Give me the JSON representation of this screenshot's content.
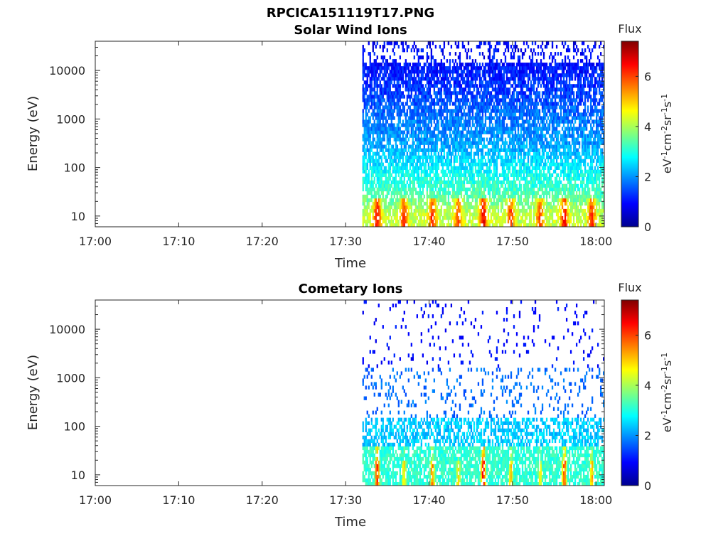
{
  "figure": {
    "filename_title": "RPCICA151119T17.PNG"
  },
  "colors": {
    "colormap": "jet",
    "axis": "#262626",
    "background": "#ffffff"
  },
  "chart_data": [
    {
      "type": "heatmap",
      "title": "Solar Wind Ions",
      "xlabel": "Time",
      "ylabel": "Energy (eV)",
      "x_ticks": [
        "17:00",
        "17:10",
        "17:20",
        "17:30",
        "17:40",
        "17:50",
        "18:00"
      ],
      "x_range_minutes_after_17_00": [
        0,
        61
      ],
      "y_scale": "log",
      "y_ticks": [
        "10",
        "100",
        "1000",
        "10000"
      ],
      "y_tick_values": [
        10,
        100,
        1000,
        10000
      ],
      "ylim": [
        6,
        40000
      ],
      "data_start": "17:32",
      "data_end": "18:01",
      "colorbar": {
        "title": "Flux",
        "label": "eV-1cm-2sr-1s-1",
        "ticks": [
          "0",
          "2",
          "4",
          "6"
        ],
        "range": [
          0,
          7.4
        ]
      },
      "flux_by_energy_band": [
        {
          "energy_eV": 10,
          "typical_flux": 4.2
        },
        {
          "energy_eV": 30,
          "typical_flux": 3.3
        },
        {
          "energy_eV": 100,
          "typical_flux": 2.7
        },
        {
          "energy_eV": 300,
          "typical_flux": 2.1
        },
        {
          "energy_eV": 1000,
          "typical_flux": 1.8
        },
        {
          "energy_eV": 3000,
          "typical_flux": 1.4
        },
        {
          "energy_eV": 10000,
          "typical_flux": 1.1
        },
        {
          "energy_eV": 30000,
          "typical_flux": 0.9
        }
      ]
    },
    {
      "type": "heatmap",
      "title": "Cometary Ions",
      "xlabel": "Time",
      "ylabel": "Energy (eV)",
      "x_ticks": [
        "17:00",
        "17:10",
        "17:20",
        "17:30",
        "17:40",
        "17:50",
        "18:00"
      ],
      "x_range_minutes_after_17_00": [
        0,
        61
      ],
      "y_scale": "log",
      "y_ticks": [
        "10",
        "100",
        "1000",
        "10000"
      ],
      "y_tick_values": [
        10,
        100,
        1000,
        10000
      ],
      "ylim": [
        6,
        40000
      ],
      "data_start": "17:32",
      "data_end": "18:01",
      "colorbar": {
        "title": "Flux",
        "label": "eV-1cm-2sr-1s-1",
        "ticks": [
          "0",
          "2",
          "4",
          "6"
        ],
        "range": [
          0,
          7.4
        ]
      },
      "low_energy_bursts": [
        {
          "time": "17:33.8",
          "peak_flux": 6.6
        },
        {
          "time": "17:37.0",
          "peak_flux": 5.2
        },
        {
          "time": "17:40.4",
          "peak_flux": 5.9
        },
        {
          "time": "17:43.5",
          "peak_flux": 5.0
        },
        {
          "time": "17:46.5",
          "peak_flux": 7.0
        },
        {
          "time": "17:49.8",
          "peak_flux": 5.4
        },
        {
          "time": "17:53.3",
          "peak_flux": 5.0
        },
        {
          "time": "17:56.2",
          "peak_flux": 6.4
        },
        {
          "time": "17:59.5",
          "peak_flux": 5.6
        }
      ]
    }
  ]
}
